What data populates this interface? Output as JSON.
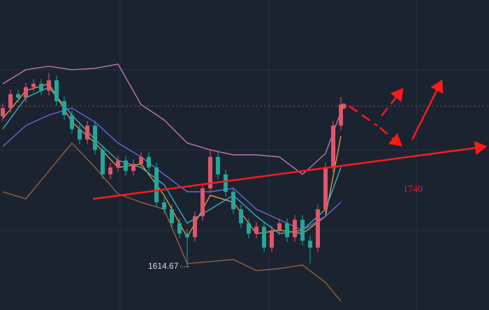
{
  "chart_data": {
    "type": "candlestick",
    "ylim": [
      1560,
      1960
    ],
    "up_color": "#e0566b",
    "down_color": "#26a69a",
    "candles": [
      [
        1810,
        1826.5,
        1804,
        1820.5
      ],
      [
        1820.5,
        1844.5,
        1814.5,
        1838.5
      ],
      [
        1838.5,
        1844.5,
        1828,
        1834
      ],
      [
        1834,
        1853.5,
        1828,
        1847.5
      ],
      [
        1847.5,
        1858,
        1841.5,
        1852
      ],
      [
        1852,
        1858,
        1837,
        1843
      ],
      [
        1843,
        1866,
        1837,
        1856.5
      ],
      [
        1856.5,
        1862.5,
        1823.5,
        1829.5
      ],
      [
        1829.5,
        1835.5,
        1805.5,
        1811.5
      ],
      [
        1811.5,
        1817.5,
        1787.5,
        1793.5
      ],
      [
        1793.5,
        1799.5,
        1774,
        1780
      ],
      [
        1780,
        1804,
        1774,
        1798
      ],
      [
        1798,
        1804,
        1760.5,
        1766.5
      ],
      [
        1766.5,
        1772.5,
        1729,
        1735
      ],
      [
        1735,
        1750,
        1729,
        1744
      ],
      [
        1744,
        1759,
        1738,
        1753
      ],
      [
        1753,
        1759,
        1733.5,
        1739.5
      ],
      [
        1739.5,
        1754.5,
        1733.5,
        1748.5
      ],
      [
        1748.5,
        1763.5,
        1742.5,
        1757.5
      ],
      [
        1757.5,
        1763.5,
        1738,
        1744
      ],
      [
        1744,
        1750,
        1693,
        1699
      ],
      [
        1699,
        1705,
        1684,
        1690
      ],
      [
        1690,
        1696,
        1666,
        1672
      ],
      [
        1672,
        1678,
        1652.5,
        1658.5
      ],
      [
        1658.5,
        1664.5,
        1614.67,
        1654
      ],
      [
        1654,
        1687,
        1648,
        1681
      ],
      [
        1681,
        1723,
        1675,
        1717
      ],
      [
        1717,
        1768,
        1711,
        1757.5
      ],
      [
        1757.5,
        1763.5,
        1729,
        1735
      ],
      [
        1735,
        1741,
        1706.5,
        1712.5
      ],
      [
        1712.5,
        1718.5,
        1684,
        1690
      ],
      [
        1690,
        1696,
        1666,
        1672
      ],
      [
        1672,
        1678,
        1652.5,
        1658.5
      ],
      [
        1658.5,
        1673.5,
        1652.5,
        1667.5
      ],
      [
        1667.5,
        1673.5,
        1634.5,
        1640.5
      ],
      [
        1640.5,
        1669,
        1634.5,
        1663
      ],
      [
        1663,
        1678,
        1657,
        1672
      ],
      [
        1672,
        1678,
        1648,
        1654
      ],
      [
        1654,
        1682.5,
        1648,
        1676.5
      ],
      [
        1676.5,
        1682.5,
        1643.5,
        1649.5
      ],
      [
        1649.5,
        1655.5,
        1620,
        1640.5
      ],
      [
        1640.5,
        1696,
        1634.5,
        1690
      ],
      [
        1690,
        1750,
        1684,
        1744
      ],
      [
        1744,
        1804,
        1738,
        1798
      ],
      [
        1798,
        1835,
        1792,
        1825
      ]
    ],
    "line_x": [
      0,
      3,
      6,
      9,
      12,
      15,
      18,
      21,
      24,
      27,
      30,
      33,
      36,
      39,
      42,
      44
    ],
    "lines": [
      {
        "color": "#c77fc0",
        "values": [
          1852,
          1870,
          1874.5,
          1870,
          1871.8,
          1877.2,
          1825,
          1805.2,
          1775.5,
          1766.5,
          1760.2,
          1760.2,
          1757.5,
          1735,
          1762,
          1816
        ]
      },
      {
        "color": "#a0643a",
        "values": [
          1712.5,
          1703.5,
          1739.5,
          1775.5,
          1744,
          1709.8,
          1699,
          1690,
          1619.8,
          1622.5,
          1625.2,
          1610.8,
          1613.5,
          1618,
          1595.5,
          1571.2
        ]
      },
      {
        "color": "#e8a33c",
        "values": [
          1807,
          1843,
          1852,
          1802.5,
          1775.5,
          1744,
          1748.5,
          1708,
          1654,
          1708,
          1699,
          1658.5,
          1663,
          1658.5,
          1681,
          1784.5
        ]
      },
      {
        "color": "#3fb8c9",
        "values": [
          1793.5,
          1834,
          1847.5,
          1811.5,
          1780,
          1753,
          1744,
          1721.5,
          1672,
          1690,
          1708,
          1681,
          1658.5,
          1663,
          1690,
          1744
        ]
      },
      {
        "color": "#6b6fe0",
        "values": [
          1771,
          1798,
          1811.5,
          1820.5,
          1802.5,
          1775.5,
          1757.5,
          1735,
          1712.5,
          1712.5,
          1717,
          1690,
          1676.5,
          1663,
          1681,
          1699
        ]
      }
    ],
    "annotations": [
      "1614.67",
      "1740"
    ]
  }
}
